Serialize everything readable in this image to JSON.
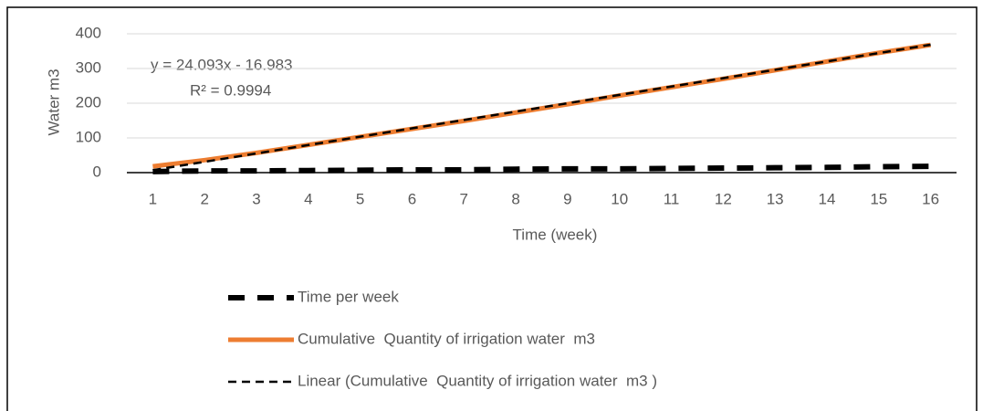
{
  "chart_data": {
    "type": "line",
    "x_label": "Time (week)",
    "y_label": "Water m3",
    "categories": [
      "1",
      "2",
      "3",
      "4",
      "5",
      "6",
      "7",
      "8",
      "9",
      "10",
      "11",
      "12",
      "13",
      "14",
      "15",
      "16"
    ],
    "ylim": [
      0,
      400
    ],
    "yticks": [
      0,
      100,
      200,
      300,
      400
    ],
    "grid": true,
    "legend": "bottom",
    "annotations": [
      "y = 24.093x - 16.983",
      "R² = 0.9994"
    ],
    "series": [
      {
        "name": "Time per week",
        "color": "#000000",
        "style": "thick-dash",
        "values": [
          3,
          5,
          5,
          6,
          7,
          8,
          8,
          10,
          11,
          11,
          12,
          13,
          14,
          15,
          17,
          18
        ]
      },
      {
        "name": "Cumulative  Quantity of irrigation water  m3",
        "color": "#ed7d31",
        "style": "solid",
        "values": [
          18,
          36,
          57,
          80,
          103,
          126,
          149,
          173,
          197,
          222,
          246,
          270,
          295,
          320,
          345,
          368
        ]
      },
      {
        "name": "Linear (Cumulative  Quantity of irrigation water  m3 )",
        "color": "#000000",
        "style": "thin-dash",
        "values": [
          7.11,
          31.2,
          55.3,
          79.4,
          103.5,
          127.6,
          151.7,
          175.8,
          199.9,
          224.0,
          248.0,
          272.1,
          296.2,
          320.3,
          344.4,
          368.5
        ]
      }
    ]
  }
}
